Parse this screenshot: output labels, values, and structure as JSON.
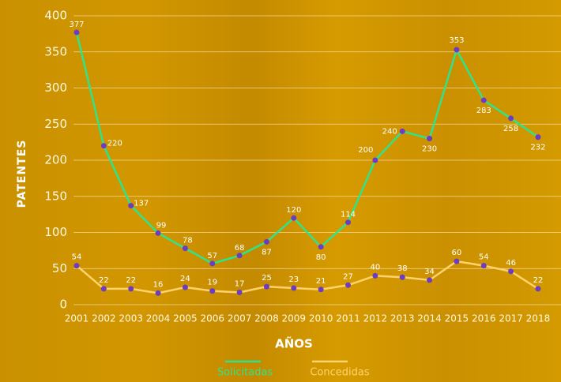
{
  "chart_data": {
    "type": "line",
    "x_label": "AÑOS",
    "y_label": "PATENTES",
    "categories": [
      "2001",
      "2002",
      "2003",
      "2004",
      "2005",
      "2006",
      "2007",
      "2008",
      "2009",
      "2010",
      "2011",
      "2012",
      "2013",
      "2014",
      "2015",
      "2016",
      "2017",
      "2018"
    ],
    "series": [
      {
        "name": "Solicitadas",
        "color": "#2fe38c",
        "values": [
          377,
          220,
          137,
          99,
          78,
          57,
          68,
          87,
          120,
          80,
          114,
          200,
          240,
          230,
          353,
          283,
          258,
          232
        ]
      },
      {
        "name": "Concedidas",
        "color": "#ffd36b",
        "values": [
          54,
          22,
          22,
          16,
          24,
          19,
          17,
          25,
          23,
          21,
          27,
          40,
          38,
          34,
          60,
          54,
          46,
          22
        ]
      }
    ],
    "marker_color": "#6b3cc4",
    "ylim": [
      0,
      400
    ],
    "yticks": [
      0,
      50,
      100,
      150,
      200,
      250,
      300,
      350,
      400
    ],
    "grid": true
  }
}
